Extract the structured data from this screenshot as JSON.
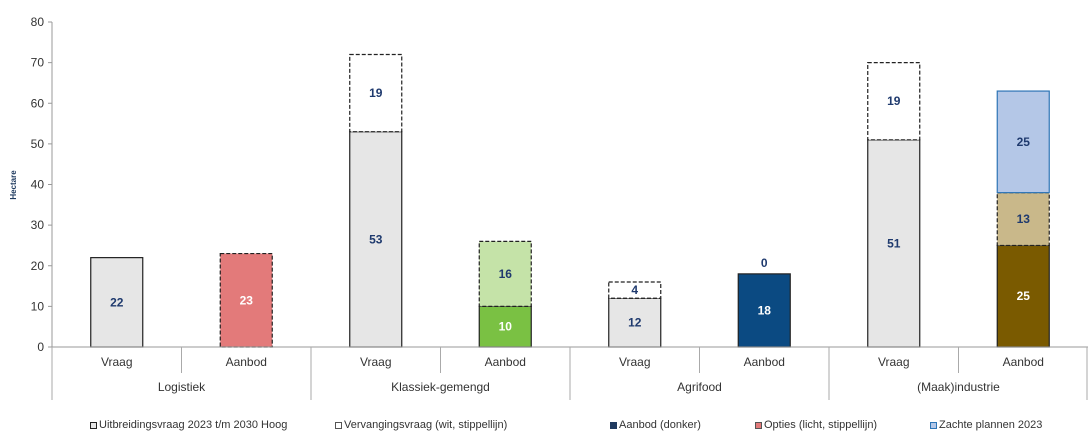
{
  "chart_data": {
    "type": "bar",
    "stacked": true,
    "ylabel": "Hectare",
    "ylim": [
      0,
      80
    ],
    "yticks": [
      0,
      10,
      20,
      30,
      40,
      50,
      60,
      70,
      80
    ],
    "groups": [
      {
        "name": "Logistiek",
        "bars": [
          {
            "label": "Vraag",
            "segments": [
              {
                "series": "Uitbreidingsvraag 2023 t/m 2030 Hoog",
                "value": 22,
                "fill": "#e6e6e6",
                "stroke": "#222222",
                "dashed": false,
                "text_color": "#1f3a6e"
              }
            ]
          },
          {
            "label": "Aanbod",
            "segments": [
              {
                "series": "Opties (licht, stippellijn)",
                "value": 23,
                "fill": "#e37a7a",
                "stroke": "#222222",
                "dashed": true,
                "text_color": "#ffffff"
              }
            ]
          }
        ]
      },
      {
        "name": "Klassiek-gemengd",
        "bars": [
          {
            "label": "Vraag",
            "segments": [
              {
                "series": "Uitbreidingsvraag 2023 t/m 2030 Hoog",
                "value": 53,
                "fill": "#e6e6e6",
                "stroke": "#222222",
                "dashed": false,
                "text_color": "#1f3a6e"
              },
              {
                "series": "Vervangingsvraag (wit, stippellijn)",
                "value": 19,
                "fill": "#ffffff",
                "stroke": "#222222",
                "dashed": true,
                "text_color": "#1f3a6e"
              }
            ]
          },
          {
            "label": "Aanbod",
            "segments": [
              {
                "series": "Aanbod (donker)",
                "value": 10,
                "fill": "#7ac143",
                "stroke": "#222222",
                "dashed": false,
                "text_color": "#ffffff"
              },
              {
                "series": "Opties (licht, stippellijn)",
                "value": 16,
                "fill": "#c5e3a8",
                "stroke": "#222222",
                "dashed": true,
                "text_color": "#1f3a6e"
              }
            ]
          }
        ]
      },
      {
        "name": "Agrifood",
        "bars": [
          {
            "label": "Vraag",
            "segments": [
              {
                "series": "Uitbreidingsvraag 2023 t/m 2030 Hoog",
                "value": 12,
                "fill": "#e6e6e6",
                "stroke": "#222222",
                "dashed": false,
                "text_color": "#1f3a6e"
              },
              {
                "series": "Vervangingsvraag (wit, stippellijn)",
                "value": 4,
                "fill": "#ffffff",
                "stroke": "#222222",
                "dashed": true,
                "text_color": "#1f3a6e"
              }
            ]
          },
          {
            "label": "Aanbod",
            "segments": [
              {
                "series": "Aanbod (donker)",
                "value": 18,
                "fill": "#0b4a82",
                "stroke": "#222222",
                "dashed": false,
                "text_color": "#ffffff"
              },
              {
                "series": "Opties (licht, stippellijn)",
                "value": 0,
                "fill": "#ffffff",
                "stroke": "#222222",
                "dashed": true,
                "text_color": "#1f3a6e"
              }
            ]
          }
        ]
      },
      {
        "name": "(Maak)industrie",
        "bars": [
          {
            "label": "Vraag",
            "segments": [
              {
                "series": "Uitbreidingsvraag 2023 t/m 2030 Hoog",
                "value": 51,
                "fill": "#e6e6e6",
                "stroke": "#222222",
                "dashed": false,
                "text_color": "#1f3a6e"
              },
              {
                "series": "Vervangingsvraag (wit, stippellijn)",
                "value": 19,
                "fill": "#ffffff",
                "stroke": "#222222",
                "dashed": true,
                "text_color": "#1f3a6e"
              }
            ]
          },
          {
            "label": "Aanbod",
            "segments": [
              {
                "series": "Aanbod (donker)",
                "value": 25,
                "fill": "#7a5a00",
                "stroke": "#222222",
                "dashed": false,
                "text_color": "#ffffff"
              },
              {
                "series": "Opties (licht, stippellijn)",
                "value": 13,
                "fill": "#c9b88a",
                "stroke": "#222222",
                "dashed": true,
                "text_color": "#1f3a6e"
              },
              {
                "series": "Zachte plannen 2023",
                "value": 25,
                "fill": "#b4c7e7",
                "stroke": "#2e75b6",
                "dashed": false,
                "text_color": "#1f3a6e"
              }
            ]
          }
        ]
      }
    ],
    "legend": {
      "placement": "bottom",
      "entries": [
        {
          "label": "Uitbreidingsvraag 2023 t/m 2030 Hoog",
          "fill": "#e6e6e6",
          "stroke": "#222222"
        },
        {
          "label": "Vervangingsvraag (wit, stippellijn)",
          "fill": "#ffffff",
          "stroke": "#555555"
        },
        {
          "label": "Aanbod  (donker)",
          "fill": "#1f3a5f",
          "stroke": "#1f3a5f"
        },
        {
          "label": "Opties (licht, stippellijn)",
          "fill": "#e37a7a",
          "stroke": "#555555"
        },
        {
          "label": "Zachte plannen 2023",
          "fill": "#b4c7e7",
          "stroke": "#2e75b6"
        }
      ]
    }
  }
}
